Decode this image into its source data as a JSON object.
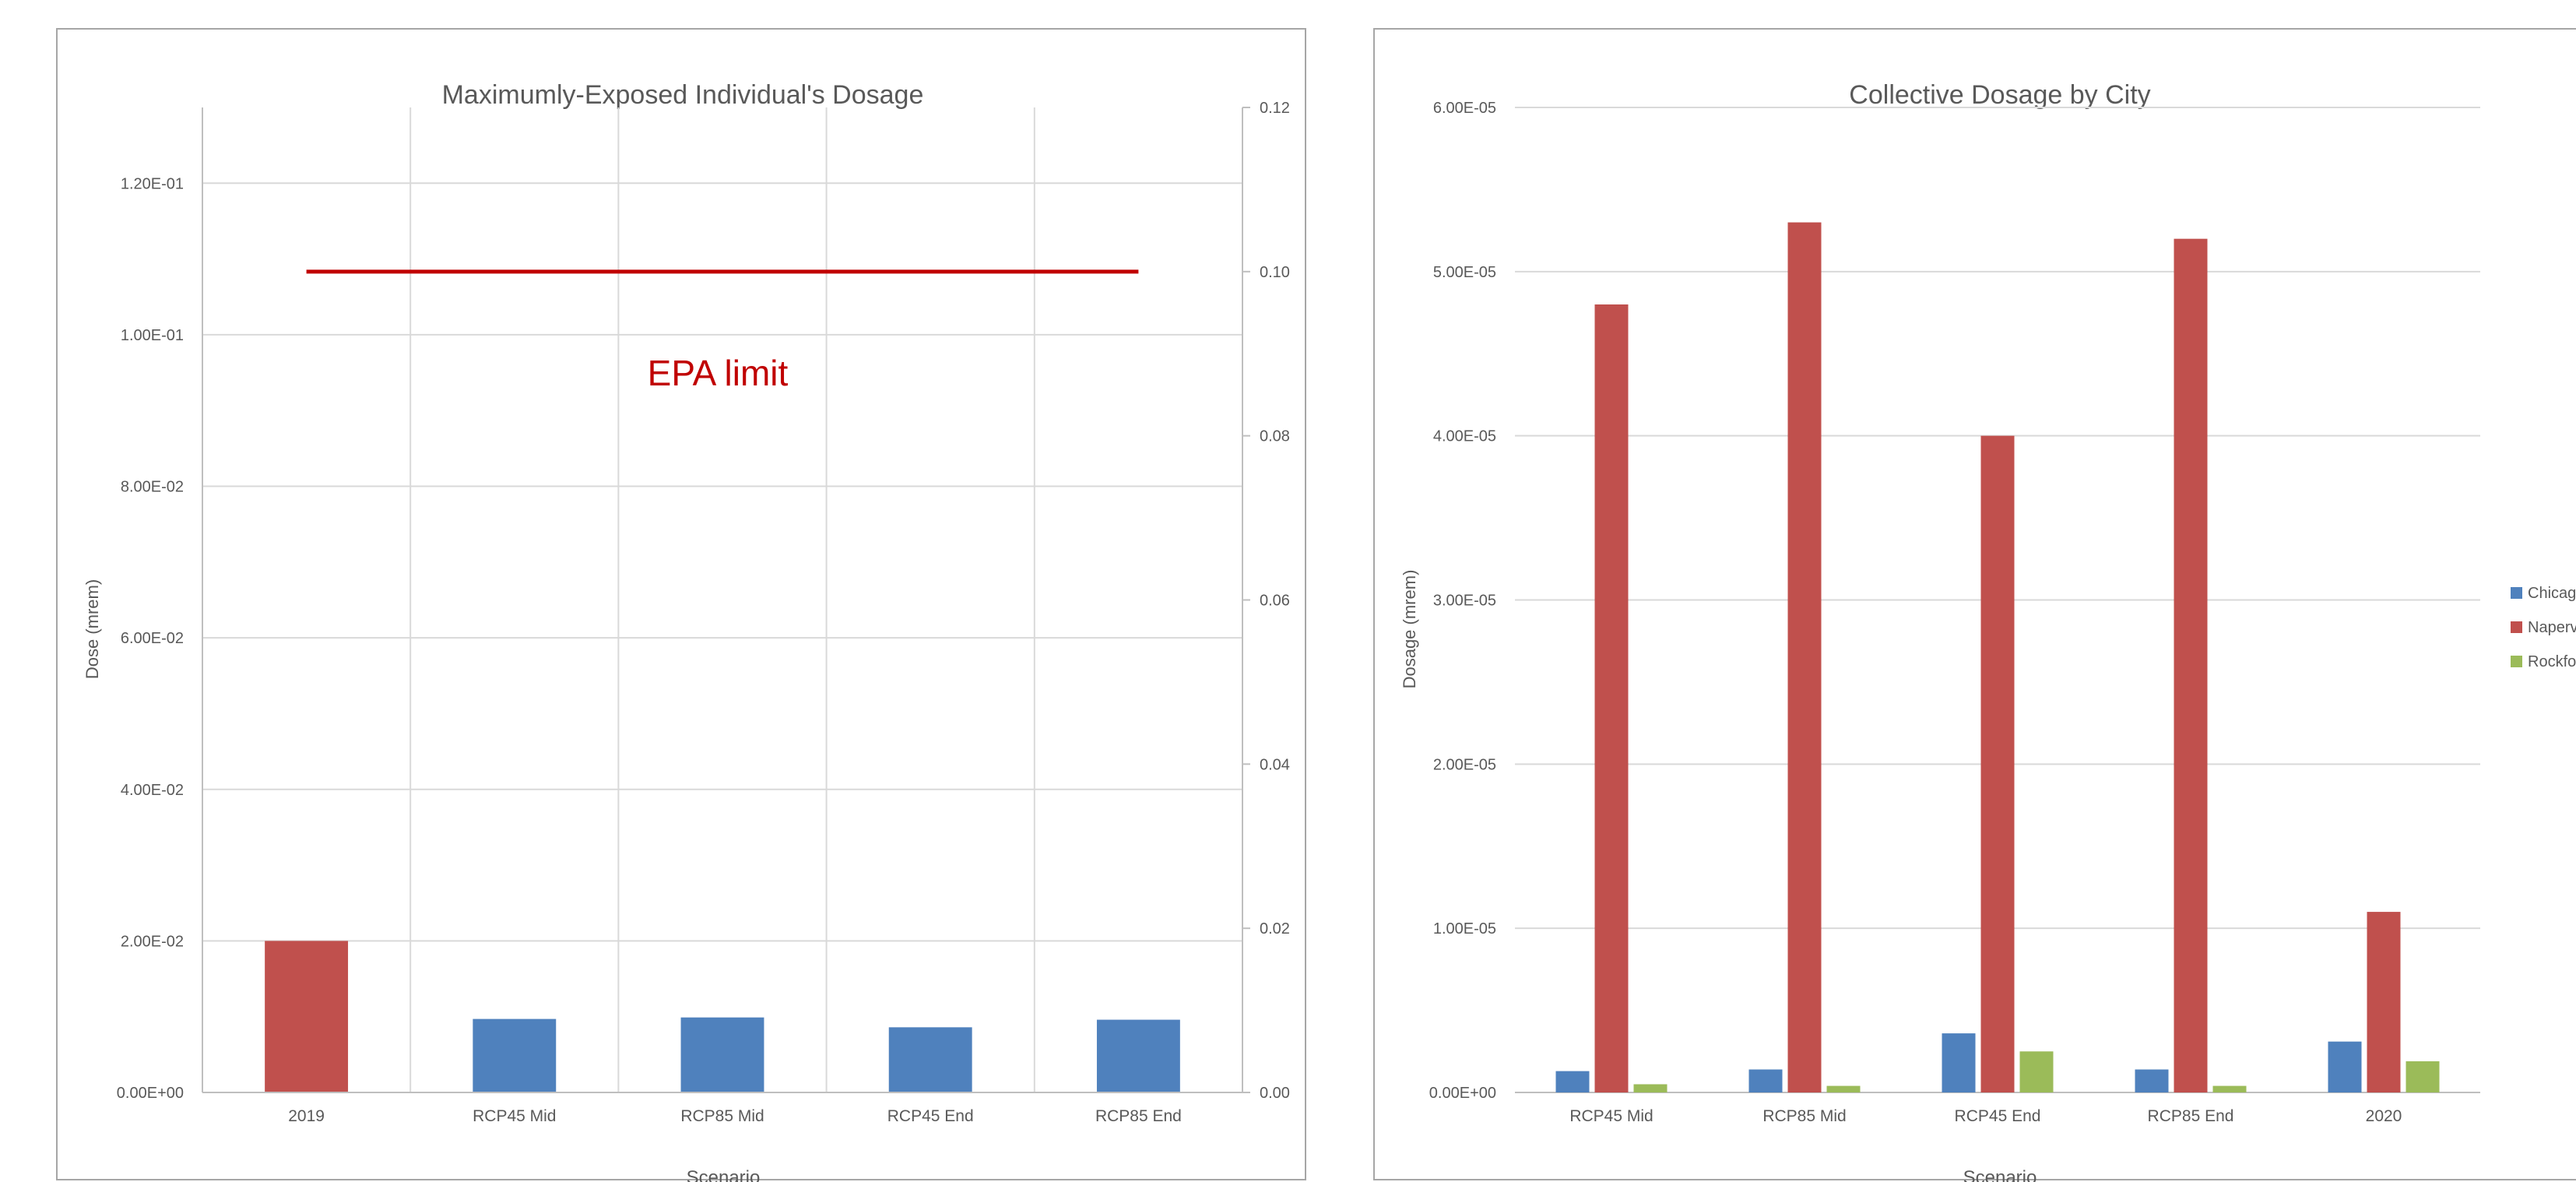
{
  "charts": {
    "mei": {
      "title": "Maximumly-Exposed Individual's Dosage",
      "ylabel": "Dose (mrem)",
      "xlabel": "Scenario",
      "annotation": "EPA limit"
    },
    "collective": {
      "title": "Collective Dosage by City",
      "ylabel": "Dosage (mrem)",
      "xlabel": "Scenario",
      "legend": [
        "Chicag",
        "Naperv",
        "Rockfo"
      ]
    }
  },
  "chart_data": [
    {
      "type": "bar",
      "title": "Maximumly-Exposed Individual's Dosage",
      "xlabel": "Scenario",
      "ylabel": "Dose (mrem)",
      "categories": [
        "2019",
        "RCP45 Mid",
        "RCP85 Mid",
        "RCP45 End",
        "RCP85 End"
      ],
      "values": [
        0.02,
        0.0097,
        0.0099,
        0.0086,
        0.0096
      ],
      "bar_colors": [
        "#c0504d",
        "#4f81bd",
        "#4f81bd",
        "#4f81bd",
        "#4f81bd"
      ],
      "ylim": [
        0,
        0.13
      ],
      "yticks": [
        "0.00E+00",
        "2.00E-02",
        "4.00E-02",
        "6.00E-02",
        "8.00E-02",
        "1.00E-01",
        "1.20E-01"
      ],
      "secondary_y": {
        "ylim": [
          0,
          0.12
        ],
        "ticks": [
          "0.00",
          "0.02",
          "0.04",
          "0.06",
          "0.08",
          "0.10",
          "0.12"
        ]
      },
      "reference_line": {
        "label": "EPA limit",
        "value": 0.1,
        "axis": "secondary",
        "color": "#c00000"
      },
      "grid": true
    },
    {
      "type": "bar",
      "title": "Collective Dosage by City",
      "xlabel": "Scenario",
      "ylabel": "Dosage (mrem)",
      "categories": [
        "RCP45 Mid",
        "RCP85 Mid",
        "RCP45 End",
        "RCP85 End",
        "2020"
      ],
      "series": [
        {
          "name": "Chicag",
          "color": "#4f81bd",
          "values": [
            1.3e-06,
            1.4e-06,
            3.6e-06,
            1.4e-06,
            3.1e-06
          ]
        },
        {
          "name": "Naperv",
          "color": "#c0504d",
          "values": [
            4.8e-05,
            5.3e-05,
            4e-05,
            5.2e-05,
            1.1e-05
          ]
        },
        {
          "name": "Rockfo",
          "color": "#9bbb59",
          "values": [
            5e-07,
            4e-07,
            2.5e-06,
            4e-07,
            1.9e-06
          ]
        }
      ],
      "ylim": [
        0,
        6e-05
      ],
      "yticks": [
        "0.00E+00",
        "1.00E-05",
        "2.00E-05",
        "3.00E-05",
        "4.00E-05",
        "5.00E-05",
        "6.00E-05"
      ],
      "legend_position": "right",
      "grid": true
    }
  ]
}
